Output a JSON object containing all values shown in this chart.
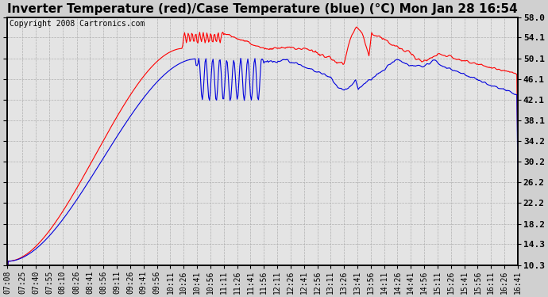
{
  "title": "Inverter Temperature (red)/Case Temperature (blue) (°C) Mon Jan 28 16:54",
  "copyright": "Copyright 2008 Cartronics.com",
  "ylabel_right_ticks": [
    10.3,
    14.3,
    18.2,
    22.2,
    26.2,
    30.2,
    34.2,
    38.1,
    42.1,
    46.1,
    50.1,
    54.1,
    58.0
  ],
  "ylim": [
    10.3,
    58.0
  ],
  "bg_color": "#d0d0d0",
  "plot_bg_color": "#e4e4e4",
  "grid_color": "#b0b0b0",
  "red_color": "#ff0000",
  "blue_color": "#0000dd",
  "title_fontsize": 11,
  "copyright_fontsize": 7,
  "xtick_fontsize": 7,
  "ytick_fontsize": 8,
  "xtick_labels": [
    "07:08",
    "07:25",
    "07:40",
    "07:55",
    "08:10",
    "08:26",
    "08:41",
    "08:56",
    "09:11",
    "09:26",
    "09:41",
    "09:56",
    "10:11",
    "10:26",
    "10:41",
    "10:56",
    "11:11",
    "11:26",
    "11:41",
    "11:56",
    "12:11",
    "12:26",
    "12:41",
    "12:56",
    "13:11",
    "13:26",
    "13:41",
    "13:56",
    "14:11",
    "14:26",
    "14:41",
    "14:56",
    "15:11",
    "15:26",
    "15:41",
    "15:56",
    "16:11",
    "16:26",
    "16:41"
  ]
}
